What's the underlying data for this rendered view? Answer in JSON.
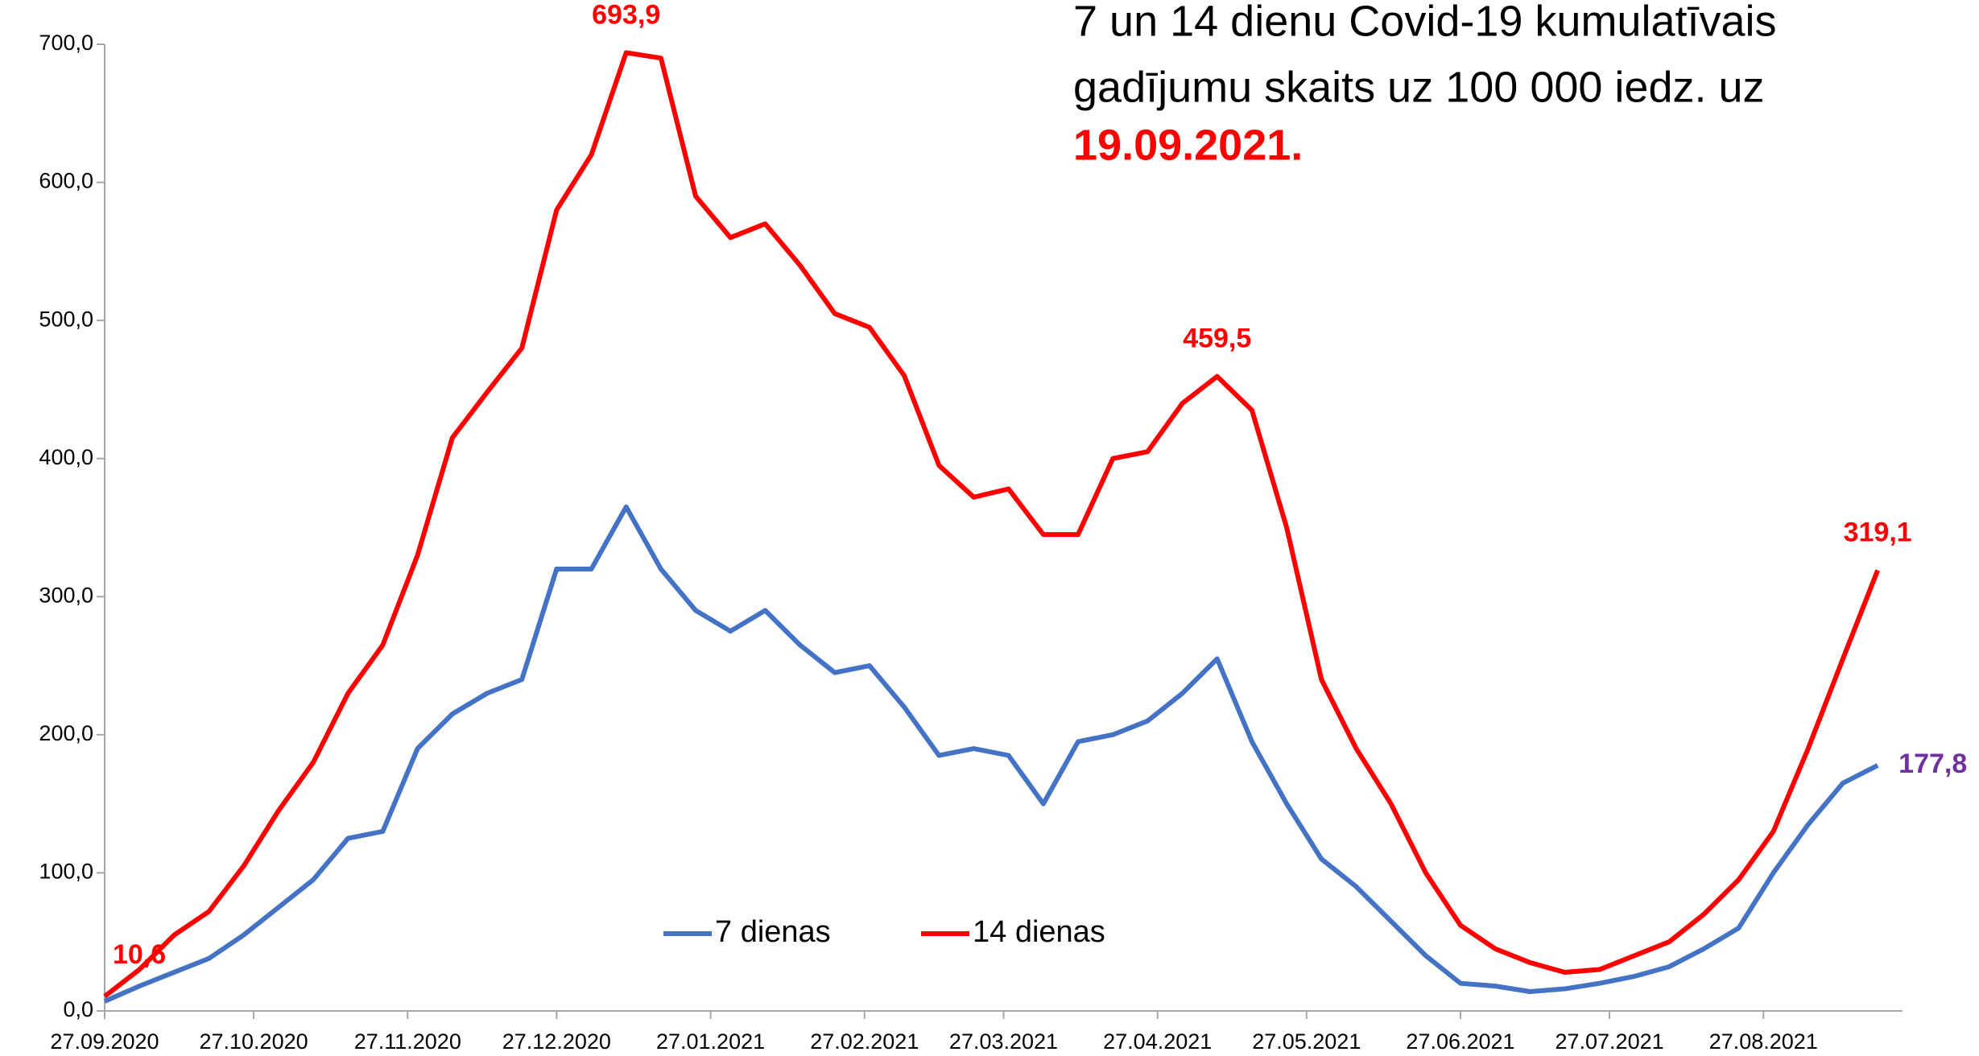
{
  "chart_data": {
    "type": "line",
    "title": [
      "7 un 14 dienu Covid-19 kumulatīvais",
      "gadījumu skaits uz 100 000 iedz. uz",
      "19.09.2021."
    ],
    "x": [
      "27.09.2020",
      "04.10.2020",
      "11.10.2020",
      "18.10.2020",
      "25.10.2020",
      "01.11.2020",
      "08.11.2020",
      "15.11.2020",
      "22.11.2020",
      "29.11.2020",
      "06.12.2020",
      "13.12.2020",
      "20.12.2020",
      "27.12.2020",
      "03.01.2021",
      "10.01.2021",
      "17.01.2021",
      "24.01.2021",
      "31.01.2021",
      "07.02.2021",
      "14.02.2021",
      "21.02.2021",
      "28.02.2021",
      "07.03.2021",
      "14.03.2021",
      "21.03.2021",
      "28.03.2021",
      "04.04.2021",
      "11.04.2021",
      "18.04.2021",
      "25.04.2021",
      "02.05.2021",
      "09.05.2021",
      "16.05.2021",
      "23.05.2021",
      "30.05.2021",
      "06.06.2021",
      "13.06.2021",
      "20.06.2021",
      "27.06.2021",
      "04.07.2021",
      "11.07.2021",
      "18.07.2021",
      "25.07.2021",
      "01.08.2021",
      "08.08.2021",
      "15.08.2021",
      "22.08.2021",
      "29.08.2021",
      "05.09.2021",
      "12.09.2021",
      "19.09.2021"
    ],
    "series": [
      {
        "name": "7 dienas",
        "color": "#4472c4",
        "label_color": "#7030a0",
        "values": [
          7,
          18,
          28,
          38,
          55,
          75,
          95,
          125,
          130,
          190,
          215,
          230,
          240,
          320,
          320,
          365,
          320,
          290,
          275,
          290,
          265,
          245,
          250,
          220,
          185,
          190,
          185,
          150,
          195,
          200,
          210,
          230,
          255,
          195,
          150,
          110,
          90,
          65,
          40,
          20,
          18,
          14,
          16,
          20,
          25,
          32,
          45,
          60,
          100,
          135,
          165,
          177.8
        ],
        "value_labels": [
          null,
          null,
          null,
          null,
          null,
          null,
          null,
          null,
          null,
          null,
          null,
          null,
          null,
          null,
          null,
          null,
          null,
          null,
          null,
          null,
          null,
          null,
          null,
          null,
          null,
          null,
          null,
          null,
          null,
          null,
          null,
          null,
          null,
          null,
          null,
          null,
          null,
          null,
          null,
          null,
          null,
          null,
          null,
          null,
          null,
          null,
          null,
          null,
          null,
          null,
          null,
          "177,8"
        ]
      },
      {
        "name": "14 dienas",
        "color": "#ff0000",
        "label_color": "#ff0000",
        "values": [
          10.6,
          30,
          55,
          72,
          105,
          145,
          180,
          230,
          265,
          330,
          415,
          448,
          480,
          580,
          620,
          693.9,
          690,
          590,
          560,
          570,
          540,
          505,
          495,
          460,
          395,
          372,
          378,
          345,
          345,
          400,
          405,
          440,
          459.5,
          435,
          350,
          240,
          190,
          150,
          100,
          62,
          45,
          35,
          28,
          30,
          40,
          50,
          70,
          95,
          130,
          190,
          255,
          319.1
        ],
        "value_labels": [
          "10,6",
          null,
          null,
          null,
          null,
          null,
          null,
          null,
          null,
          null,
          null,
          null,
          null,
          null,
          null,
          "693,9",
          null,
          null,
          null,
          null,
          null,
          null,
          null,
          null,
          null,
          null,
          null,
          null,
          null,
          null,
          null,
          null,
          "459,5",
          null,
          null,
          null,
          null,
          null,
          null,
          null,
          null,
          null,
          null,
          null,
          null,
          null,
          null,
          null,
          null,
          null,
          null,
          "319,1"
        ]
      }
    ],
    "xlim": [
      "27.09.2020",
      "24.09.2021"
    ],
    "xticks": [
      "27.09.2020",
      "27.10.2020",
      "27.11.2020",
      "27.12.2020",
      "27.01.2021",
      "27.02.2021",
      "27.03.2021",
      "27.04.2021",
      "27.05.2021",
      "27.06.2021",
      "27.07.2021",
      "27.08.2021"
    ],
    "ylim": [
      0,
      700
    ],
    "yticks": [
      {
        "value": 0,
        "label": "0,0"
      },
      {
        "value": 100,
        "label": "100,0"
      },
      {
        "value": 200,
        "label": "200,0"
      },
      {
        "value": 300,
        "label": "300,0"
      },
      {
        "value": 400,
        "label": "400,0"
      },
      {
        "value": 500,
        "label": "500,0"
      },
      {
        "value": 600,
        "label": "600,0"
      },
      {
        "value": 700,
        "label": "700,0"
      }
    ],
    "grid": false,
    "legend": "bottom"
  }
}
